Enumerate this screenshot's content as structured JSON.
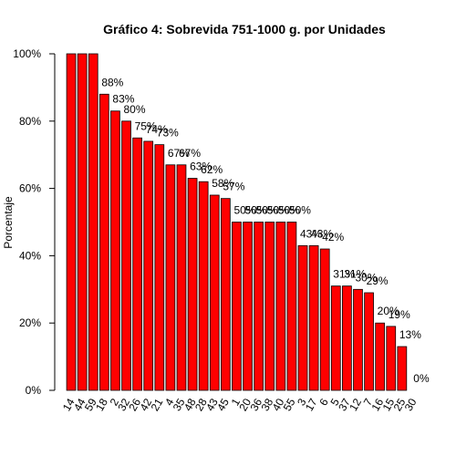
{
  "chart_data": {
    "type": "bar",
    "title": "Gráfico 4: Sobrevida 751-1000 g. por Unidades",
    "xlabel": "",
    "ylabel": "Porcentaje",
    "ylim": [
      0,
      100
    ],
    "yticks": [
      0,
      20,
      40,
      60,
      80,
      100
    ],
    "ytick_labels": [
      "0%",
      "20%",
      "40%",
      "60%",
      "80%",
      "100%"
    ],
    "bar_color": "#ff0000",
    "bar_edge_color": "#000000",
    "grid": false,
    "legend": "none",
    "categories": [
      "14",
      "44",
      "59",
      "18",
      "2",
      "32",
      "26",
      "42",
      "21",
      "4",
      "35",
      "48",
      "28",
      "43",
      "45",
      "1",
      "20",
      "36",
      "38",
      "40",
      "55",
      "3",
      "17",
      "6",
      "5",
      "37",
      "12",
      "7",
      "16",
      "15",
      "25",
      "30"
    ],
    "values": [
      100,
      100,
      100,
      88,
      83,
      80,
      75,
      74,
      73,
      67,
      67,
      63,
      62,
      58,
      57,
      50,
      50,
      50,
      50,
      50,
      50,
      43,
      43,
      42,
      31,
      31,
      30,
      29,
      20,
      19,
      13,
      0
    ],
    "value_labels": [
      "",
      "",
      "",
      "88%",
      "83%",
      "80%",
      "75%",
      "74%",
      "73%",
      "67%",
      "67%",
      "63%",
      "62%",
      "58%",
      "57%",
      "50%",
      "50%",
      "50%",
      "50%",
      "50%",
      "50%",
      "43%",
      "43%",
      "42%",
      "31%",
      "31%",
      "30%",
      "29%",
      "20%",
      "19%",
      "13%",
      "0%"
    ]
  }
}
